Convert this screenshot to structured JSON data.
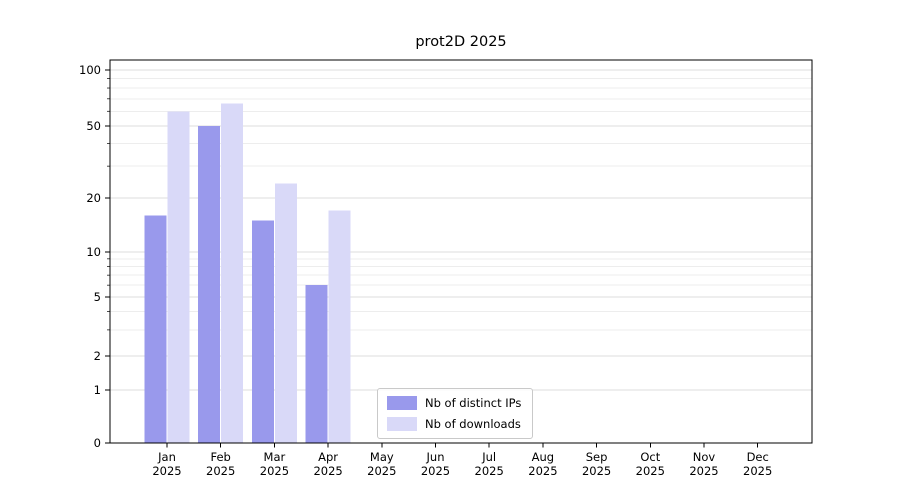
{
  "chart_data": {
    "type": "bar",
    "title": "prot2D 2025",
    "categories": [
      "Jan",
      "Feb",
      "Mar",
      "Apr",
      "May",
      "Jun",
      "Jul",
      "Aug",
      "Sep",
      "Oct",
      "Nov",
      "Dec"
    ],
    "x_year": "2025",
    "y_scale": "symlog",
    "y_ticks": [
      0,
      1,
      2,
      5,
      10,
      20,
      50,
      100
    ],
    "ylim": [
      0,
      130
    ],
    "grid": true,
    "legend_position": "bottom-center-inside",
    "series": [
      {
        "key": "distinct-ips",
        "name": "Nb of distinct IPs",
        "color": "#9999ec",
        "values": [
          16,
          50,
          15,
          6,
          0,
          0,
          0,
          0,
          0,
          0,
          0,
          0
        ]
      },
      {
        "key": "downloads",
        "name": "Nb of downloads",
        "color": "#d9d9f8",
        "values": [
          60,
          66,
          24,
          17,
          0,
          0,
          0,
          0,
          0,
          0,
          0,
          0
        ]
      }
    ]
  }
}
